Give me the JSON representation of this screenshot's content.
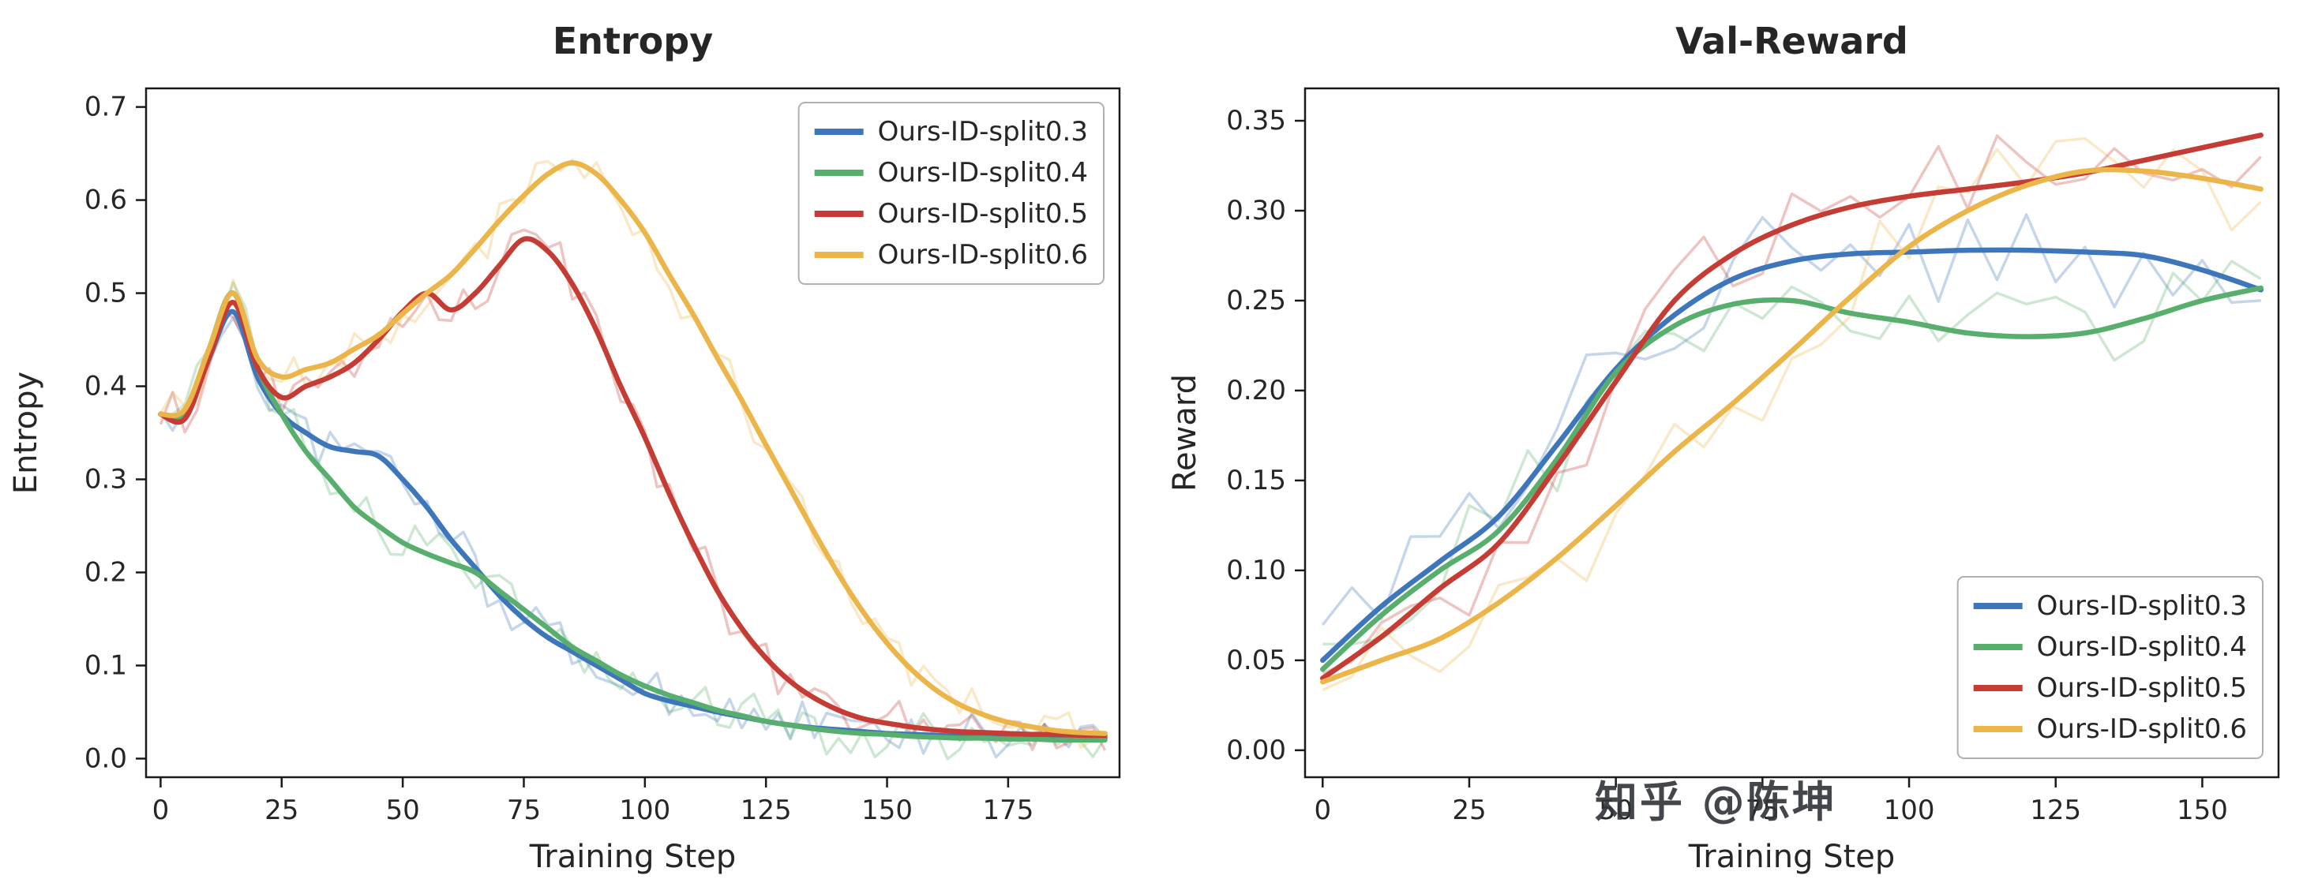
{
  "watermark": {
    "text": "知乎 @陈坤"
  },
  "style": {
    "axis_color": "#1a1a1a",
    "text_color": "#262626",
    "legend_border": "#b0b0b0",
    "background": "#ffffff"
  },
  "chart_data": [
    {
      "type": "line",
      "title": "Entropy",
      "xlabel": "Training Step",
      "ylabel": "Entropy",
      "xlim": [
        -3,
        198
      ],
      "ylim": [
        -0.02,
        0.72
      ],
      "xticks": [
        0,
        25,
        50,
        75,
        100,
        125,
        150,
        175
      ],
      "ytick_values": [
        0.0,
        0.1,
        0.2,
        0.3,
        0.4,
        0.5,
        0.6,
        0.7
      ],
      "ytick_labels": [
        "0.0",
        "0.1",
        "0.2",
        "0.3",
        "0.4",
        "0.5",
        "0.6",
        "0.7"
      ],
      "legend_position": "upper-right",
      "grid": false,
      "raw_overlay": {
        "opacity": 0.3,
        "jitter": 0.018
      },
      "x": [
        0,
        5,
        10,
        15,
        20,
        25,
        30,
        35,
        40,
        45,
        50,
        55,
        60,
        65,
        70,
        75,
        80,
        85,
        90,
        95,
        100,
        105,
        110,
        115,
        120,
        125,
        130,
        135,
        140,
        145,
        150,
        155,
        160,
        165,
        170,
        175,
        180,
        185,
        190,
        195
      ],
      "series": [
        {
          "name": "Ours-ID-split0.3",
          "color": "#3E76BC",
          "values": [
            0.37,
            0.365,
            0.43,
            0.48,
            0.41,
            0.37,
            0.35,
            0.335,
            0.33,
            0.325,
            0.3,
            0.27,
            0.235,
            0.205,
            0.175,
            0.15,
            0.13,
            0.115,
            0.1,
            0.085,
            0.07,
            0.062,
            0.056,
            0.05,
            0.045,
            0.04,
            0.036,
            0.033,
            0.031,
            0.029,
            0.027,
            0.026,
            0.025,
            0.024,
            0.023,
            0.023,
            0.022,
            0.022,
            0.022,
            0.022
          ]
        },
        {
          "name": "Ours-ID-split0.4",
          "color": "#58AE6C",
          "values": [
            0.37,
            0.37,
            0.44,
            0.5,
            0.42,
            0.37,
            0.33,
            0.3,
            0.27,
            0.25,
            0.232,
            0.22,
            0.21,
            0.2,
            0.18,
            0.16,
            0.14,
            0.12,
            0.105,
            0.09,
            0.078,
            0.068,
            0.06,
            0.052,
            0.046,
            0.04,
            0.036,
            0.032,
            0.029,
            0.027,
            0.026,
            0.024,
            0.023,
            0.022,
            0.022,
            0.021,
            0.021,
            0.02,
            0.02,
            0.02
          ]
        },
        {
          "name": "Ours-ID-split0.5",
          "color": "#C43C33",
          "values": [
            0.37,
            0.365,
            0.43,
            0.49,
            0.42,
            0.388,
            0.4,
            0.41,
            0.425,
            0.45,
            0.48,
            0.5,
            0.482,
            0.5,
            0.53,
            0.558,
            0.545,
            0.51,
            0.46,
            0.4,
            0.345,
            0.285,
            0.23,
            0.18,
            0.14,
            0.108,
            0.083,
            0.065,
            0.052,
            0.043,
            0.038,
            0.034,
            0.031,
            0.029,
            0.028,
            0.027,
            0.026,
            0.026,
            0.025,
            0.025
          ]
        },
        {
          "name": "Ours-ID-split0.6",
          "color": "#EBB549",
          "values": [
            0.37,
            0.375,
            0.44,
            0.5,
            0.43,
            0.41,
            0.418,
            0.425,
            0.44,
            0.455,
            0.478,
            0.5,
            0.52,
            0.548,
            0.578,
            0.605,
            0.628,
            0.64,
            0.628,
            0.6,
            0.565,
            0.52,
            0.477,
            0.43,
            0.385,
            0.337,
            0.29,
            0.243,
            0.198,
            0.158,
            0.124,
            0.096,
            0.074,
            0.058,
            0.047,
            0.039,
            0.034,
            0.03,
            0.028,
            0.027
          ]
        }
      ]
    },
    {
      "type": "line",
      "title": "Val-Reward",
      "xlabel": "Training Step",
      "ylabel": "Reward",
      "xlim": [
        -3,
        163
      ],
      "ylim": [
        -0.015,
        0.368
      ],
      "xticks": [
        0,
        25,
        50,
        75,
        100,
        125,
        150
      ],
      "ytick_values": [
        0.0,
        0.05,
        0.1,
        0.15,
        0.2,
        0.25,
        0.3,
        0.35
      ],
      "ytick_labels": [
        "0.00",
        "0.05",
        "0.10",
        "0.15",
        "0.20",
        "0.25",
        "0.30",
        "0.35"
      ],
      "legend_position": "lower-right",
      "grid": false,
      "raw_overlay": {
        "opacity": 0.3,
        "jitter": 0.02
      },
      "x": [
        0,
        10,
        20,
        30,
        40,
        50,
        60,
        70,
        80,
        90,
        100,
        110,
        120,
        130,
        140,
        150,
        160
      ],
      "series": [
        {
          "name": "Ours-ID-split0.3",
          "color": "#3E76BC",
          "values": [
            0.05,
            0.08,
            0.105,
            0.13,
            0.17,
            0.212,
            0.242,
            0.262,
            0.272,
            0.276,
            0.277,
            0.278,
            0.278,
            0.277,
            0.275,
            0.267,
            0.256
          ]
        },
        {
          "name": "Ours-ID-split0.4",
          "color": "#58AE6C",
          "values": [
            0.045,
            0.075,
            0.1,
            0.122,
            0.162,
            0.21,
            0.236,
            0.248,
            0.25,
            0.243,
            0.238,
            0.232,
            0.23,
            0.232,
            0.24,
            0.25,
            0.257
          ]
        },
        {
          "name": "Ours-ID-split0.5",
          "color": "#C43C33",
          "values": [
            0.04,
            0.063,
            0.09,
            0.115,
            0.158,
            0.205,
            0.25,
            0.276,
            0.292,
            0.302,
            0.308,
            0.312,
            0.316,
            0.321,
            0.328,
            0.335,
            0.342
          ]
        },
        {
          "name": "Ours-ID-split0.6",
          "color": "#EBB549",
          "values": [
            0.038,
            0.05,
            0.062,
            0.082,
            0.107,
            0.136,
            0.166,
            0.193,
            0.222,
            0.252,
            0.28,
            0.3,
            0.314,
            0.322,
            0.322,
            0.318,
            0.312
          ]
        }
      ]
    }
  ]
}
